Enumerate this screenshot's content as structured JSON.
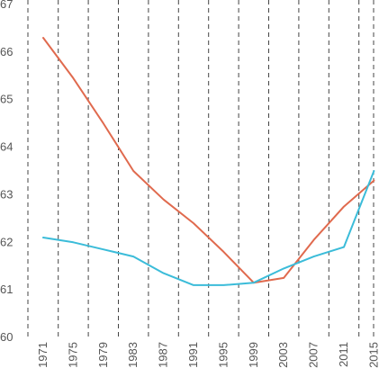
{
  "chart_data": {
    "type": "line",
    "title": "",
    "xlabel": "",
    "ylabel": "",
    "x": [
      1971,
      1975,
      1979,
      1983,
      1987,
      1991,
      1995,
      1999,
      2003,
      2007,
      2011,
      2015
    ],
    "x_tick_labels": [
      "1971",
      "1975",
      "1979",
      "1983",
      "1987",
      "1991",
      "1995",
      "1999",
      "2003",
      "2007",
      "2011",
      "2015"
    ],
    "ylim": [
      60,
      67
    ],
    "y_ticks": [
      60,
      61,
      62,
      63,
      64,
      65,
      66,
      67
    ],
    "y_tick_labels": [
      "60",
      "61",
      "62",
      "63",
      "64",
      "65",
      "66",
      "67"
    ],
    "grid": "vertical dashed",
    "legend": "none",
    "series": [
      {
        "color": "#e06a4e",
        "values": [
          66.3,
          65.45,
          64.5,
          63.5,
          62.9,
          62.4,
          61.8,
          61.15,
          61.25,
          62.05,
          62.75,
          63.3
        ]
      },
      {
        "color": "#3bbcd9",
        "values": [
          62.1,
          62.0,
          61.85,
          61.7,
          61.35,
          61.1,
          61.1,
          61.15,
          61.45,
          61.7,
          61.9,
          63.5
        ]
      }
    ]
  }
}
